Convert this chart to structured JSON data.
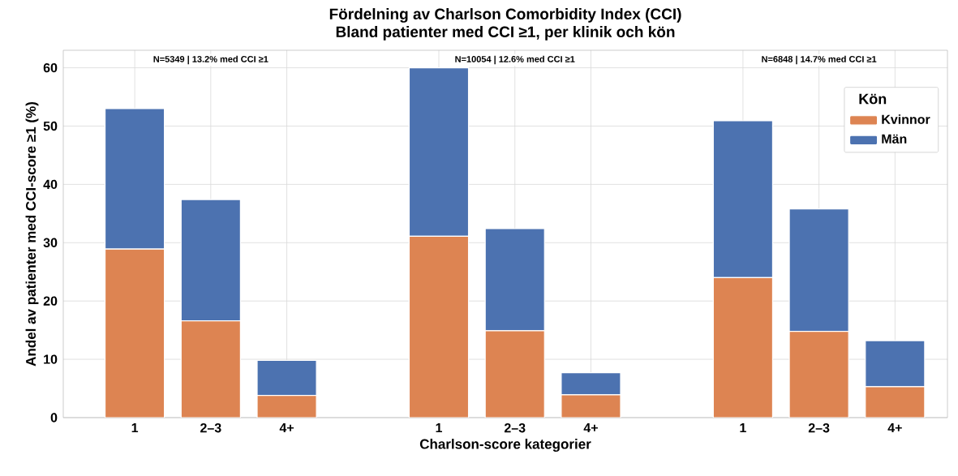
{
  "chart_data": {
    "type": "bar",
    "stacked": true,
    "title": "Fördelning av Charlson Comorbidity Index (CCI)",
    "subtitle": "Bland patienter med CCI ≥1, per klinik och kön",
    "xlabel": "Charlson-score kategorier",
    "ylabel": "Andel av patienter med CCI-score ≥1 (%)",
    "legend_title": "Kön",
    "categories": [
      "1",
      "2–3",
      "4+",
      null,
      "1",
      "2–3",
      "4+",
      null,
      "1",
      "2–3",
      "4+"
    ],
    "series": [
      {
        "name": "Kvinnor",
        "color": "#dd8452",
        "values": [
          28.9,
          16.6,
          3.8,
          null,
          31.1,
          14.9,
          3.9,
          null,
          24.0,
          14.8,
          5.3
        ]
      },
      {
        "name": "Män",
        "color": "#4c72b0",
        "values": [
          24.1,
          20.8,
          6.0,
          null,
          28.9,
          17.5,
          3.8,
          null,
          26.9,
          21.0,
          7.9
        ]
      }
    ],
    "annotations": [
      "N=5349 | 13.2% med CCI ≥1",
      "N=10054 | 12.6% med CCI ≥1",
      "N=6848 | 14.7% med CCI ≥1"
    ],
    "ylim": [
      0,
      63
    ],
    "yticks": [
      0,
      10,
      20,
      30,
      40,
      50,
      60
    ],
    "grid": true,
    "legend": "top right"
  }
}
